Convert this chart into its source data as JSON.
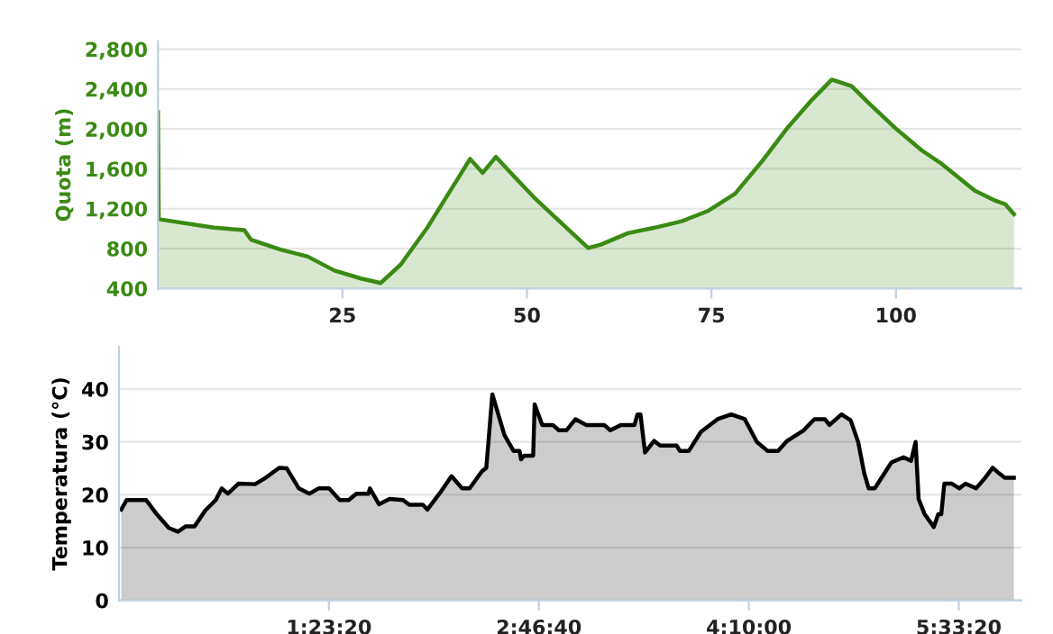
{
  "chart_data": [
    {
      "type": "area",
      "ylabel": "Quota (m)",
      "grid": "y",
      "xlim": [
        0,
        117
      ],
      "xticks": [
        25,
        50,
        75,
        100
      ],
      "ylim": [
        400,
        2880
      ],
      "yticks": [
        400,
        800,
        {
          "value": 1200,
          "label": "1,200"
        },
        {
          "value": 1600,
          "label": "1,600"
        },
        {
          "value": 2000,
          "label": "2,000"
        },
        {
          "value": 2400,
          "label": "2,400"
        },
        {
          "value": 2800,
          "label": "2,800"
        }
      ],
      "series": [
        {
          "color": "#3a8a13",
          "x": [
            0,
            0.1,
            7.6,
            11.7,
            12.6,
            16.6,
            20.3,
            23.9,
            27.5,
            30.2,
            32.9,
            36.5,
            42.3,
            44,
            45.8,
            48.3,
            51,
            58.3,
            60,
            63.7,
            67.3,
            71,
            74.6,
            78.2,
            81.9,
            85.4,
            88.6,
            91.3,
            94,
            96.3,
            99.9,
            103.5,
            106.2,
            110.7,
            113.5,
            114.8,
            116
          ],
          "values": [
            2170,
            1095,
            1010,
            985,
            890,
            790,
            720,
            580,
            500,
            455,
            640,
            1010,
            1700,
            1560,
            1720,
            1520,
            1310,
            805,
            840,
            955,
            1010,
            1075,
            1180,
            1350,
            1680,
            2020,
            2290,
            2495,
            2430,
            2260,
            2010,
            1785,
            1650,
            1380,
            1280,
            1245,
            1145
          ]
        }
      ]
    },
    {
      "type": "area",
      "ylabel": "Temperatura (°C)",
      "grid": "y",
      "xlim": [
        0,
        5.97
      ],
      "xticks": [
        {
          "value": 1.3889,
          "label": "1:23:20"
        },
        {
          "value": 2.7778,
          "label": "2:46:40"
        },
        {
          "value": 4.1667,
          "label": "4:10:00"
        },
        {
          "value": 5.5556,
          "label": "5:33:20"
        }
      ],
      "ylim": [
        0,
        48
      ],
      "yticks": [
        0,
        10,
        20,
        30,
        40
      ],
      "series": [
        {
          "color": "#000000",
          "x": [
            0.015,
            0.05,
            0.18,
            0.25,
            0.33,
            0.39,
            0.44,
            0.5,
            0.57,
            0.64,
            0.68,
            0.72,
            0.79,
            0.9,
            0.97,
            1.06,
            1.11,
            1.19,
            1.26,
            1.32,
            1.39,
            1.46,
            1.52,
            1.57,
            1.65,
            1.66,
            1.72,
            1.79,
            1.88,
            1.92,
            2.01,
            2.04,
            2.12,
            2.2,
            2.27,
            2.32,
            2.4,
            2.43,
            2.47,
            2.55,
            2.61,
            2.65,
            2.66,
            2.68,
            2.74,
            2.75,
            2.8,
            2.87,
            2.91,
            2.96,
            3.02,
            3.09,
            3.21,
            3.25,
            3.32,
            3.41,
            3.43,
            3.45,
            3.48,
            3.54,
            3.58,
            3.69,
            3.71,
            3.77,
            3.85,
            3.96,
            4.05,
            4.14,
            4.22,
            4.29,
            4.36,
            4.42,
            4.53,
            4.6,
            4.67,
            4.7,
            4.78,
            4.84,
            4.89,
            4.93,
            4.96,
            5.0,
            5.11,
            5.19,
            5.24,
            5.27,
            5.29,
            5.33,
            5.39,
            5.42,
            5.44,
            5.46,
            5.51,
            5.56,
            5.6,
            5.67,
            5.73,
            5.78,
            5.82,
            5.86,
            5.92
          ],
          "values": [
            17.2,
            19,
            19,
            16.3,
            13.7,
            13,
            14,
            14,
            17,
            19,
            21.2,
            20.2,
            22.1,
            22,
            23.2,
            25.1,
            25,
            21.2,
            20.2,
            21.2,
            21.2,
            19,
            19,
            20.2,
            20.2,
            21.2,
            18.2,
            19.2,
            19,
            18.1,
            18.1,
            17.2,
            20.2,
            23.5,
            21.2,
            21.2,
            24.4,
            25.1,
            39,
            31.3,
            28.3,
            28.3,
            26.7,
            27.4,
            27.4,
            37.1,
            33.2,
            33.2,
            32.2,
            32.2,
            34.3,
            33.2,
            33.2,
            32.2,
            33.2,
            33.2,
            35.2,
            35.2,
            28,
            30.2,
            29.3,
            29.3,
            28.3,
            28.3,
            31.9,
            34.3,
            35.2,
            34.3,
            30,
            28.3,
            28.3,
            30.2,
            32.2,
            34.3,
            34.3,
            33.2,
            35.2,
            34.1,
            30,
            24.1,
            21.2,
            21.2,
            26.1,
            27.1,
            26.4,
            30,
            19.2,
            16.3,
            13.9,
            16.3,
            16.3,
            22.1,
            22.1,
            21.2,
            22.1,
            21.2,
            23.2,
            25.1,
            24.1,
            23.2,
            23.2
          ]
        }
      ]
    }
  ]
}
